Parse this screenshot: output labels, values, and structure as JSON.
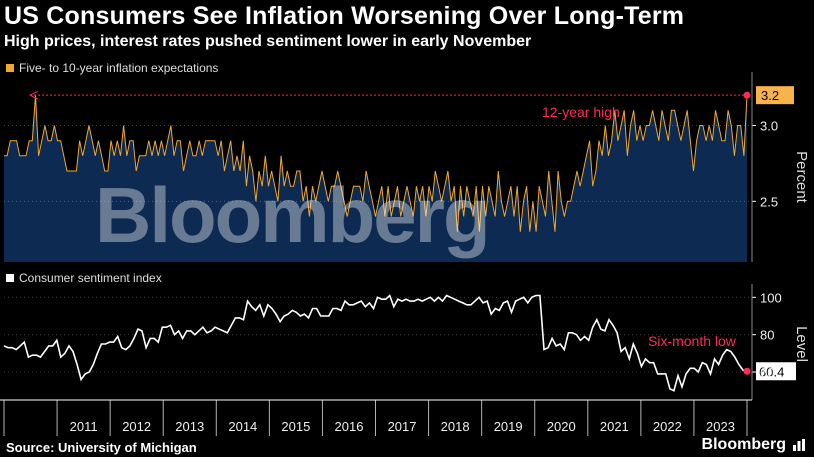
{
  "title": "US Consumers See Inflation Worsening Over Long-Term",
  "subtitle": "High prices, interest rates pushed sentiment lower in early November",
  "source": "Source: University of Michigan",
  "brand": "Bloomberg",
  "colors": {
    "background": "#000000",
    "inflation_line": "#f0a830",
    "inflation_fill": "#0c2a52",
    "sentiment_line": "#ffffff",
    "highlight": "#ff2a55",
    "callout_bg": "#f6b44a"
  },
  "chart_data": [
    {
      "type": "area",
      "legend": "Five- to 10-year inflation expectations",
      "ylabel": "Percent",
      "yticks": [
        2.5,
        3.0
      ],
      "ylim": [
        2.1,
        3.3
      ],
      "grid": true,
      "annotation": "12-year high",
      "last_value_label": "3.2",
      "last_value": 3.2,
      "x_start": 2010.0,
      "x_step_months": 1,
      "values": [
        2.8,
        2.8,
        2.9,
        2.9,
        2.9,
        2.8,
        2.8,
        2.8,
        2.9,
        2.9,
        3.2,
        2.8,
        2.9,
        3.0,
        2.9,
        2.9,
        3.0,
        2.9,
        2.9,
        2.8,
        2.7,
        2.7,
        2.7,
        2.7,
        2.9,
        2.8,
        2.9,
        3.0,
        2.9,
        2.8,
        2.9,
        2.8,
        2.7,
        2.7,
        2.9,
        2.8,
        2.9,
        2.8,
        3.0,
        2.8,
        2.9,
        2.9,
        2.7,
        2.8,
        2.8,
        2.8,
        2.9,
        2.8,
        2.9,
        2.8,
        2.9,
        2.8,
        2.9,
        3.0,
        2.8,
        2.9,
        2.9,
        2.7,
        2.8,
        2.9,
        2.8,
        2.8,
        2.9,
        2.8,
        2.9,
        2.9,
        2.9,
        2.9,
        2.8,
        2.9,
        2.7,
        2.8,
        2.9,
        2.7,
        2.8,
        2.7,
        2.9,
        2.6,
        2.8,
        2.7,
        2.5,
        2.7,
        2.6,
        2.8,
        2.6,
        2.7,
        2.6,
        2.5,
        2.8,
        2.6,
        2.7,
        2.6,
        2.6,
        2.7,
        2.7,
        2.5,
        2.6,
        2.4,
        2.6,
        2.5,
        2.6,
        2.7,
        2.6,
        2.5,
        2.6,
        2.6,
        2.7,
        2.6,
        2.5,
        2.4,
        2.5,
        2.6,
        2.6,
        2.6,
        2.5,
        2.7,
        2.6,
        2.5,
        2.4,
        2.5,
        2.6,
        2.4,
        2.6,
        2.4,
        2.5,
        2.6,
        2.4,
        2.5,
        2.6,
        2.5,
        2.4,
        2.6,
        2.5,
        2.6,
        2.4,
        2.6,
        2.5,
        2.7,
        2.6,
        2.5,
        2.6,
        2.7,
        2.5,
        2.6,
        2.3,
        2.6,
        2.4,
        2.6,
        2.5,
        2.4,
        2.6,
        2.3,
        2.6,
        2.4,
        2.6,
        2.5,
        2.4,
        2.7,
        2.5,
        2.4,
        2.5,
        2.6,
        2.4,
        2.6,
        2.3,
        2.5,
        2.6,
        2.3,
        2.5,
        2.3,
        2.6,
        2.5,
        2.4,
        2.7,
        2.5,
        2.3,
        2.7,
        2.5,
        2.4,
        2.5,
        2.5,
        2.6,
        2.7,
        2.6,
        2.7,
        2.8,
        2.9,
        2.6,
        2.7,
        2.9,
        2.8,
        3.0,
        2.8,
        2.9,
        3.1,
        2.9,
        3.0,
        3.1,
        2.8,
        3.0,
        3.1,
        2.9,
        3.0,
        2.9,
        3.0,
        3.0,
        3.1,
        3.0,
        2.9,
        3.1,
        3.0,
        2.9,
        3.1,
        3.1,
        3.0,
        2.9,
        3.0,
        3.1,
        2.9,
        2.7,
        2.9,
        3.0,
        3.0,
        2.9,
        3.0,
        2.9,
        3.1,
        3.0,
        2.9,
        2.9,
        3.1,
        3.0,
        2.8,
        3.0,
        3.0,
        2.8,
        3.2
      ]
    },
    {
      "type": "line",
      "legend": "Consumer sentiment index",
      "ylabel": "Level",
      "yticks": [
        60,
        80,
        100
      ],
      "ylim": [
        45,
        105
      ],
      "grid": true,
      "annotation": "Six-month low",
      "last_value_label": "60.4",
      "last_value": 60.4,
      "x_start": 2010.0,
      "x_step_months": 1,
      "values": [
        74,
        73,
        73,
        72,
        74,
        76,
        68,
        69,
        69,
        68,
        71,
        74,
        74,
        77,
        68,
        70,
        74,
        71,
        64,
        56,
        59,
        60,
        64,
        70,
        75,
        75,
        76,
        76,
        79,
        73,
        72,
        74,
        78,
        83,
        82,
        73,
        78,
        78,
        76,
        84,
        84,
        85,
        80,
        82,
        78,
        82,
        82,
        80,
        82,
        84,
        81,
        82,
        84,
        83,
        82,
        81,
        85,
        89,
        89,
        88,
        98,
        95,
        93,
        96,
        90,
        96,
        94,
        91,
        87,
        90,
        91,
        93,
        92,
        90,
        91,
        89,
        94,
        94,
        90,
        90,
        90,
        94,
        94,
        93,
        98,
        96,
        96,
        97,
        98,
        95,
        97,
        94,
        100,
        99,
        99,
        101,
        95,
        99,
        98,
        99,
        98,
        98,
        99,
        98,
        99,
        100,
        98,
        100,
        98,
        101,
        100,
        99,
        98,
        97,
        96,
        96,
        98,
        100,
        97,
        98,
        91,
        94,
        93,
        97,
        98,
        92,
        98,
        99,
        100,
        97,
        100,
        101,
        101,
        72,
        73,
        78,
        74,
        75,
        72,
        81,
        81,
        80,
        77,
        79,
        77,
        84,
        88,
        83,
        82,
        88,
        85,
        81,
        71,
        73,
        67,
        75,
        70,
        63,
        67,
        65,
        65,
        59,
        59,
        59,
        51,
        50,
        58,
        52,
        59,
        62,
        62,
        60,
        65,
        64,
        59,
        67,
        64,
        69,
        72,
        71,
        68,
        64,
        61,
        60
      ]
    },
    {
      "type": "axis",
      "xticks": [
        "2011",
        "2012",
        "2013",
        "2014",
        "2015",
        "2016",
        "2017",
        "2018",
        "2019",
        "2020",
        "2021",
        "2022",
        "2023"
      ]
    }
  ]
}
